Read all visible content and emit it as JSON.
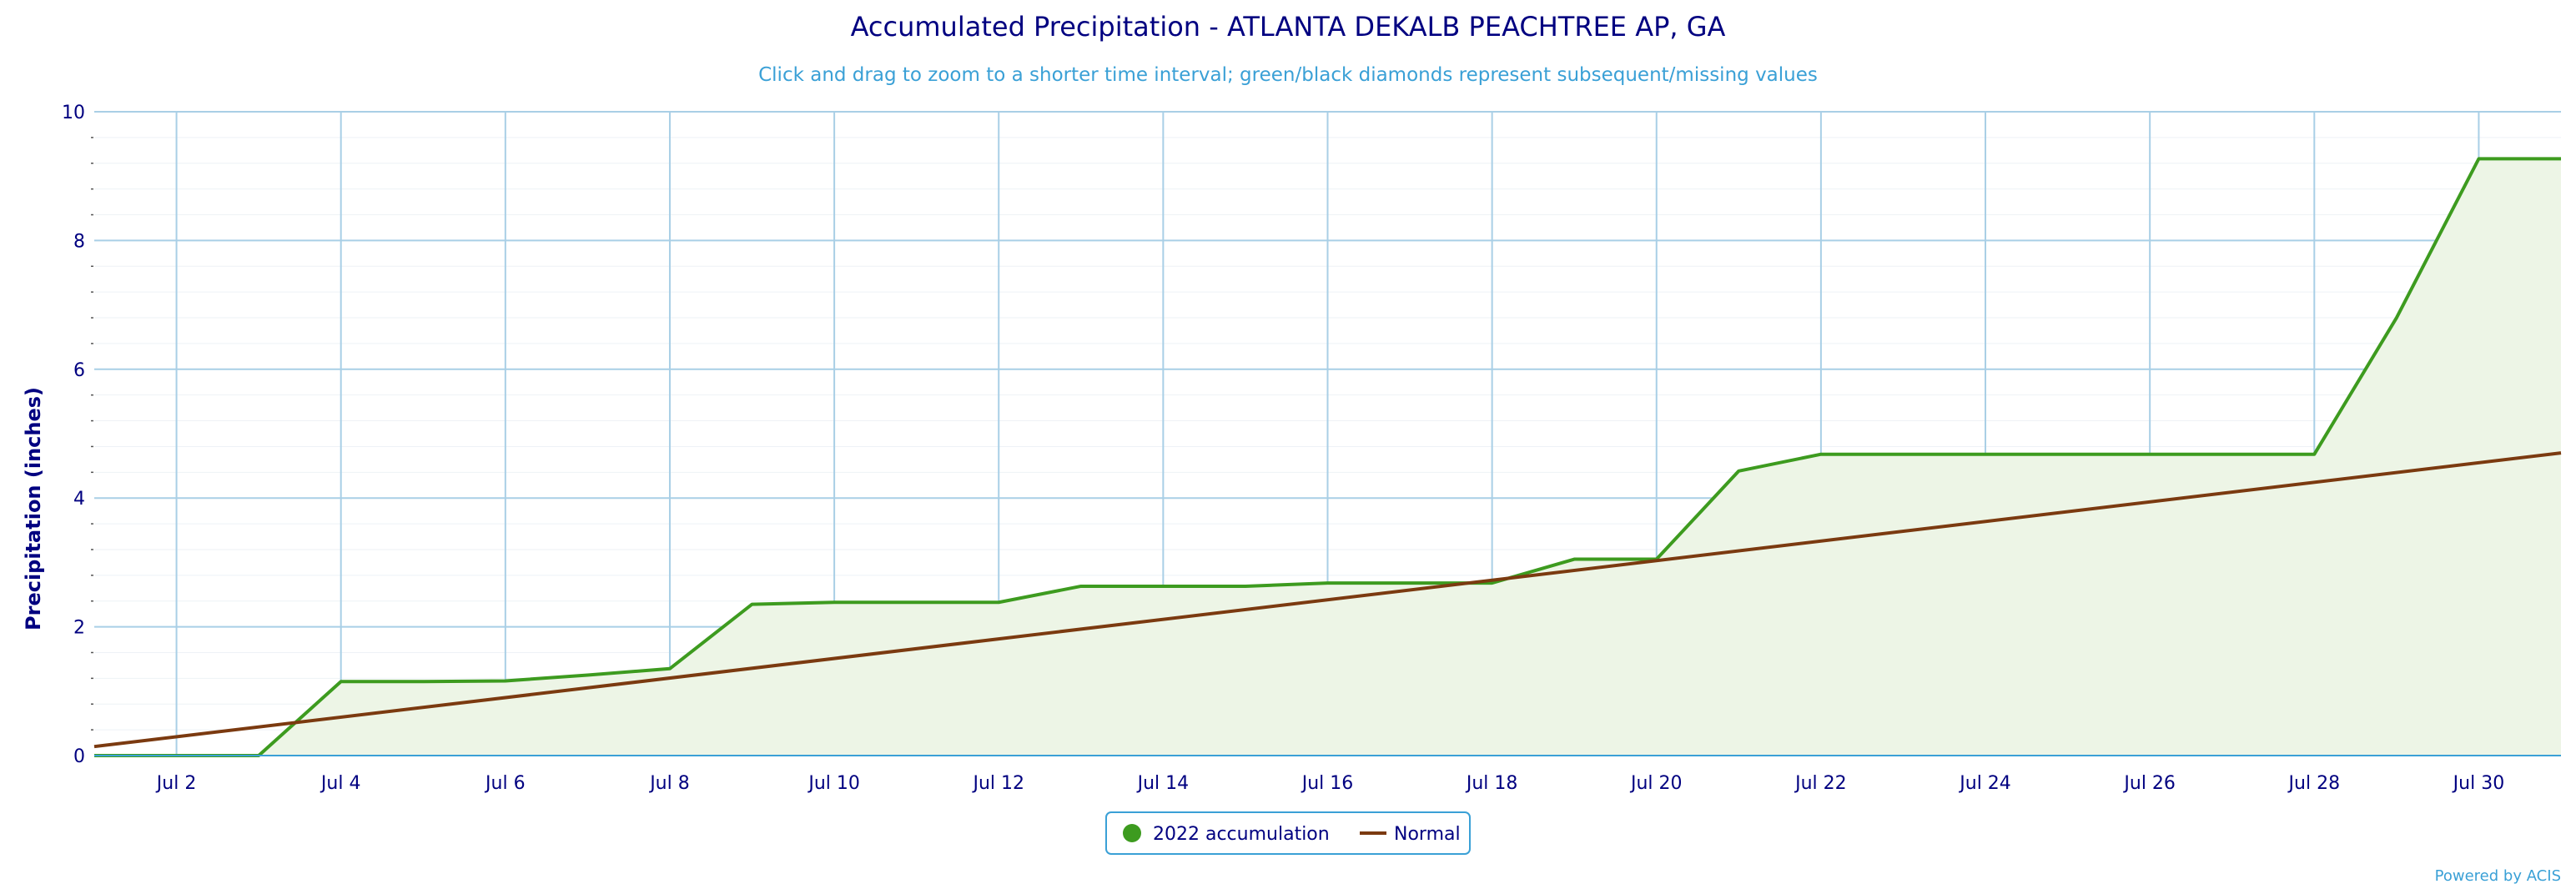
{
  "chart_data": {
    "type": "line",
    "title": "Accumulated Precipitation - ATLANTA DEKALB PEACHTREE AP, GA",
    "subtitle": "Click and drag to zoom to a shorter time interval; green/black diamonds represent subsequent/missing values",
    "ylabel": "Precipitation (inches)",
    "xlabel": "",
    "ylim": [
      0,
      10
    ],
    "xlim": [
      1,
      31
    ],
    "yticks": [
      0,
      2,
      4,
      6,
      8,
      10
    ],
    "xticks": [
      {
        "day": 2,
        "label": "Jul 2"
      },
      {
        "day": 4,
        "label": "Jul 4"
      },
      {
        "day": 6,
        "label": "Jul 6"
      },
      {
        "day": 8,
        "label": "Jul 8"
      },
      {
        "day": 10,
        "label": "Jul 10"
      },
      {
        "day": 12,
        "label": "Jul 12"
      },
      {
        "day": 14,
        "label": "Jul 14"
      },
      {
        "day": 16,
        "label": "Jul 16"
      },
      {
        "day": 18,
        "label": "Jul 18"
      },
      {
        "day": 20,
        "label": "Jul 20"
      },
      {
        "day": 22,
        "label": "Jul 22"
      },
      {
        "day": 24,
        "label": "Jul 24"
      },
      {
        "day": 26,
        "label": "Jul 26"
      },
      {
        "day": 28,
        "label": "Jul 28"
      },
      {
        "day": 30,
        "label": "Jul 30"
      }
    ],
    "grid": true,
    "legend_position": "bottom-center",
    "series": [
      {
        "name": "2022 accumulation",
        "kind": "area",
        "color": "#3d9b1f",
        "fill": "#edf5e6",
        "x": [
          1,
          2,
          3,
          4,
          5,
          6,
          7,
          8,
          9,
          10,
          11,
          12,
          13,
          14,
          15,
          16,
          17,
          18,
          19,
          20,
          21,
          22,
          23,
          24,
          25,
          26,
          27,
          28,
          29,
          30,
          31
        ],
        "values": [
          0,
          0,
          0,
          1.15,
          1.15,
          1.16,
          1.25,
          1.35,
          2.35,
          2.38,
          2.38,
          2.38,
          2.63,
          2.63,
          2.63,
          2.68,
          2.68,
          2.68,
          3.05,
          3.05,
          4.42,
          4.68,
          4.68,
          4.68,
          4.68,
          4.68,
          4.68,
          4.68,
          6.8,
          9.27,
          9.27
        ]
      },
      {
        "name": "Normal",
        "kind": "line",
        "color": "#7b3a10",
        "x": [
          1,
          31
        ],
        "values": [
          0.14,
          4.7
        ]
      }
    ]
  },
  "credit": "Powered by ACIS"
}
